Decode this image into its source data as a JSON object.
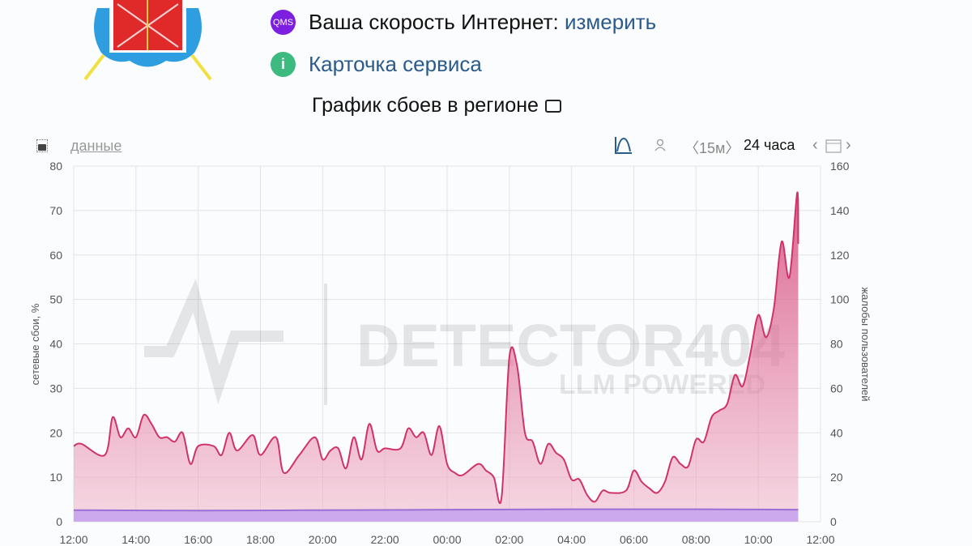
{
  "header": {
    "speed_label": "Ваша скорость Интернет:",
    "speed_link": "измерить",
    "qms_badge": "QMS",
    "service_card": "Карточка сервиса",
    "chart_title": "График сбоев в регионе"
  },
  "toolbar": {
    "data_link": "данные",
    "interval": "〈15м〉",
    "period": "24 часа"
  },
  "watermark": {
    "line1": "DETECTOR404",
    "line2": "LLM POWERED"
  },
  "colors": {
    "complaints": "#d0326c",
    "failures": "#9b6fd6",
    "link": "#2a5b8c"
  },
  "chart_data": {
    "type": "area",
    "xlabel": "",
    "ylabel_left": "сетевые сбои, %",
    "ylabel_right": "жалобы пользователей",
    "ylim_left": [
      0,
      80
    ],
    "ylim_right": [
      0,
      160
    ],
    "yticks_left": [
      "0",
      "10",
      "20",
      "30",
      "40",
      "50",
      "60",
      "70",
      "80"
    ],
    "yticks_right": [
      "0",
      "20",
      "40",
      "60",
      "80",
      "100",
      "120",
      "140",
      "160"
    ],
    "xticks": [
      "12:00",
      "14:00",
      "16:00",
      "18:00",
      "20:00",
      "22:00",
      "00:00",
      "02:00",
      "04:00",
      "06:00",
      "08:00",
      "10:00",
      "12:00"
    ],
    "grid": true,
    "series": [
      {
        "axis": "right",
        "color": "#d0326c",
        "x": [
          "12:00",
          "12:15",
          "13:00",
          "13:15",
          "13:30",
          "13:45",
          "14:00",
          "14:15",
          "14:30",
          "14:45",
          "15:00",
          "15:15",
          "15:30",
          "15:45",
          "16:00",
          "16:30",
          "16:45",
          "17:00",
          "17:15",
          "17:45",
          "18:00",
          "18:30",
          "18:45",
          "19:15",
          "19:45",
          "20:00",
          "20:15",
          "20:30",
          "20:45",
          "21:00",
          "21:15",
          "21:30",
          "21:45",
          "22:00",
          "22:30",
          "22:45",
          "23:00",
          "23:15",
          "23:30",
          "23:45",
          "00:00",
          "00:15",
          "00:30",
          "01:00",
          "01:15",
          "01:30",
          "01:45",
          "02:00",
          "02:15",
          "02:30",
          "02:45",
          "03:00",
          "03:15",
          "03:30",
          "03:45",
          "04:00",
          "04:15",
          "04:30",
          "04:45",
          "05:00",
          "05:15",
          "05:45",
          "06:00",
          "06:15",
          "06:30",
          "06:45",
          "07:00",
          "07:15",
          "07:30",
          "07:45",
          "08:00",
          "08:15",
          "08:30",
          "08:45",
          "09:00",
          "09:15",
          "09:30",
          "09:45",
          "10:00",
          "10:15",
          "10:30",
          "10:45",
          "11:00",
          "11:15",
          "11:17"
        ],
        "values": [
          34,
          35,
          30,
          47,
          38,
          42,
          38,
          48,
          44,
          38,
          38,
          36,
          40,
          26,
          34,
          34,
          30,
          40,
          32,
          39,
          30,
          38,
          22,
          30,
          38,
          28,
          32,
          33,
          24,
          38,
          28,
          44,
          32,
          33,
          33,
          42,
          38,
          40,
          30,
          43,
          26,
          22,
          21,
          26,
          23,
          20,
          11,
          74,
          70,
          40,
          36,
          26,
          35,
          31,
          28,
          19,
          19,
          12,
          9,
          14,
          13,
          14,
          23,
          18,
          15,
          13,
          18,
          29,
          26,
          25,
          37,
          36,
          47,
          50,
          53,
          66,
          61,
          76,
          93,
          83,
          96,
          126,
          110,
          148,
          125
        ]
      },
      {
        "axis": "left",
        "color": "#9b6fd6",
        "x": [
          "12:00",
          "16:00",
          "20:00",
          "00:00",
          "04:00",
          "08:00",
          "11:17"
        ],
        "values": [
          2.6,
          2.5,
          2.6,
          2.7,
          2.8,
          2.8,
          2.7
        ]
      }
    ]
  }
}
